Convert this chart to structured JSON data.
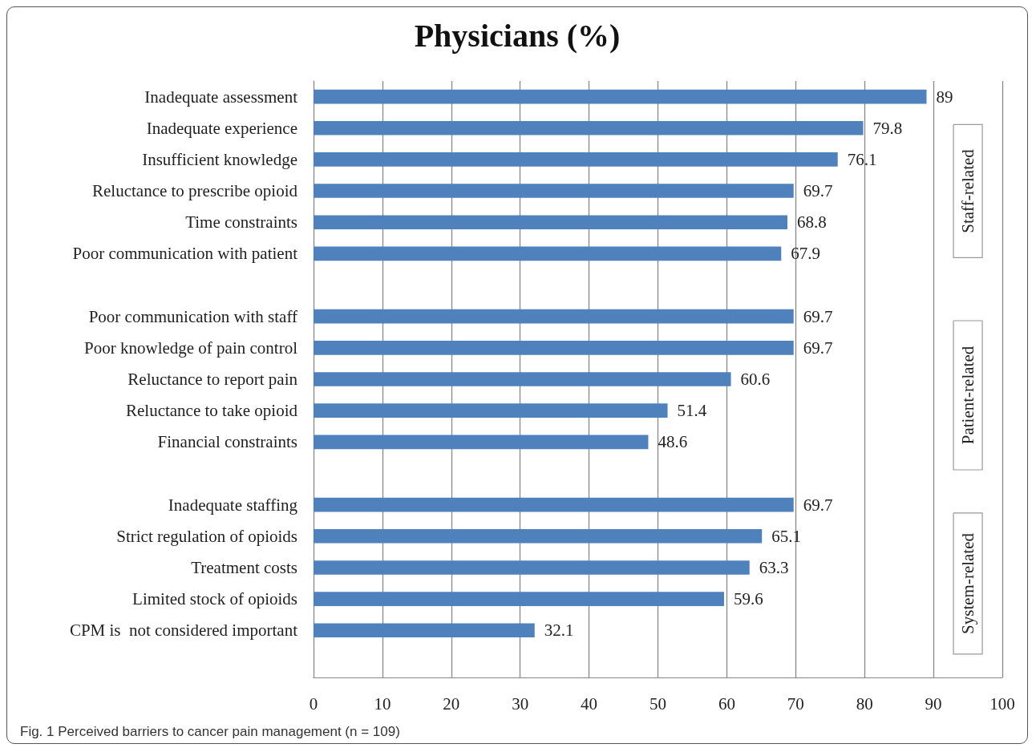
{
  "chart_data": {
    "type": "bar",
    "orientation": "horizontal",
    "title": "Physicians (%)",
    "categories": [
      "Inadequate assessment",
      "Inadequate experience",
      "Insufficient knowledge",
      "Reluctance to prescribe opioid",
      "Time constraints",
      "Poor communication with patient",
      null,
      "Poor communication with staff",
      "Poor knowledge of pain control",
      "Reluctance to report pain",
      "Reluctance to take opioid",
      "Financial constraints",
      null,
      "Inadequate staffing",
      "Strict regulation of opioids",
      "Treatment costs",
      "Limited stock of opioids",
      "CPM is  not considered important",
      null
    ],
    "values": [
      89,
      79.8,
      76.1,
      69.7,
      68.8,
      67.9,
      null,
      69.7,
      69.7,
      60.6,
      51.4,
      48.6,
      null,
      69.7,
      65.1,
      63.3,
      59.6,
      32.1,
      null
    ],
    "color": "#4f81bd",
    "data_labels": true,
    "grid": "x",
    "xlim": [
      0,
      100
    ],
    "xticks": [
      0,
      10,
      20,
      30,
      40,
      50,
      60,
      70,
      80,
      90,
      100
    ],
    "annotations": [
      "Staff-related",
      "Patient-related",
      "System-related",
      "Fig. 1 Perceived barriers to cancer pain management (n = 109)"
    ]
  }
}
